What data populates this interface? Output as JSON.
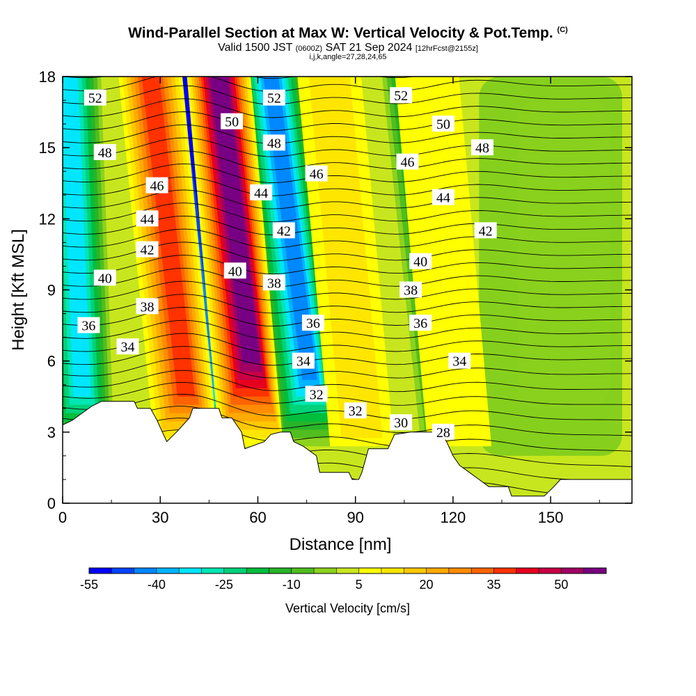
{
  "header": {
    "title": "Wind-Parallel Section at Max W: Vertical Velocity & Pot.Temp.",
    "copyright": "(C)",
    "valid_prefix": "Valid 1500 JST",
    "valid_utc": "(0600Z)",
    "valid_date": "SAT 21 Sep 2024",
    "forecast": "[12hrFcst@2155z]",
    "params": "i,j,k,angle=27,28,24,65"
  },
  "chart_data": {
    "type": "heatmap",
    "title": "Wind-Parallel Section at Max W: Vertical Velocity & Pot.Temp.",
    "xlabel": "Distance [nm]",
    "ylabel": "Height [Kft MSL]",
    "xlim": [
      0,
      175
    ],
    "ylim": [
      0,
      18
    ],
    "x_ticks": [
      0,
      30,
      60,
      90,
      120,
      150
    ],
    "y_ticks": [
      0,
      3,
      6,
      9,
      12,
      15,
      18
    ],
    "colorbar": {
      "label": "Vertical Velocity [cm/s]",
      "tick_labels": [
        -55,
        -40,
        -25,
        -10,
        5,
        20,
        35,
        50
      ],
      "levels": [
        -55,
        -50,
        -45,
        -40,
        -35,
        -30,
        -25,
        -20,
        -15,
        -10,
        -5,
        0,
        5,
        10,
        15,
        20,
        25,
        30,
        35,
        40,
        45,
        50,
        55,
        60
      ],
      "colors": [
        "#0000ff",
        "#0044ff",
        "#0088ff",
        "#00b4ff",
        "#00e6ff",
        "#00e6b4",
        "#00d27a",
        "#00be3c",
        "#28b428",
        "#50be1e",
        "#8cd21e",
        "#c8e61e",
        "#ffff00",
        "#ffe600",
        "#ffc800",
        "#ffaa00",
        "#ff8c00",
        "#ff6400",
        "#ff3200",
        "#e6001e",
        "#c80046",
        "#a00064",
        "#780082"
      ]
    },
    "updrafts": [
      {
        "x_bottom": 38,
        "x_top": 27,
        "peak_cm_s": 35
      },
      {
        "x_bottom": 58,
        "x_top": 48,
        "peak_cm_s": 60
      },
      {
        "x_bottom": 92,
        "x_top": 82,
        "peak_cm_s": 10
      },
      {
        "x_bottom": 122,
        "x_top": 112,
        "peak_cm_s": 8
      }
    ],
    "downdrafts": [
      {
        "x_bottom": 6,
        "x_top": 2,
        "peak_cm_s": -35
      },
      {
        "x_bottom": 50,
        "x_top": 38,
        "peak_cm_s": -55
      },
      {
        "x_bottom": 76,
        "x_top": 64,
        "peak_cm_s": -45
      },
      {
        "x_bottom": 120,
        "x_top": 108,
        "peak_cm_s": -30
      }
    ],
    "theta_labels": [
      {
        "value": "52",
        "x": 10,
        "y": 17.1
      },
      {
        "value": "52",
        "x": 65,
        "y": 17.1
      },
      {
        "value": "52",
        "x": 104,
        "y": 17.2
      },
      {
        "value": "50",
        "x": 52,
        "y": 16.1
      },
      {
        "value": "50",
        "x": 117,
        "y": 16.0
      },
      {
        "value": "48",
        "x": 13,
        "y": 14.8
      },
      {
        "value": "48",
        "x": 65,
        "y": 15.2
      },
      {
        "value": "48",
        "x": 129,
        "y": 15.0
      },
      {
        "value": "46",
        "x": 29,
        "y": 13.4
      },
      {
        "value": "46",
        "x": 78,
        "y": 13.9
      },
      {
        "value": "46",
        "x": 106,
        "y": 14.4
      },
      {
        "value": "44",
        "x": 26,
        "y": 12.0
      },
      {
        "value": "44",
        "x": 61,
        "y": 13.1
      },
      {
        "value": "44",
        "x": 117,
        "y": 12.9
      },
      {
        "value": "42",
        "x": 26,
        "y": 10.7
      },
      {
        "value": "42",
        "x": 68,
        "y": 11.5
      },
      {
        "value": "42",
        "x": 130,
        "y": 11.5
      },
      {
        "value": "40",
        "x": 13,
        "y": 9.5
      },
      {
        "value": "40",
        "x": 53,
        "y": 9.8
      },
      {
        "value": "40",
        "x": 110,
        "y": 10.2
      },
      {
        "value": "38",
        "x": 26,
        "y": 8.3
      },
      {
        "value": "38",
        "x": 65,
        "y": 9.3
      },
      {
        "value": "38",
        "x": 107,
        "y": 9.0
      },
      {
        "value": "36",
        "x": 8,
        "y": 7.5
      },
      {
        "value": "36",
        "x": 77,
        "y": 7.6
      },
      {
        "value": "36",
        "x": 110,
        "y": 7.6
      },
      {
        "value": "34",
        "x": 20,
        "y": 6.6
      },
      {
        "value": "34",
        "x": 74,
        "y": 6.0
      },
      {
        "value": "34",
        "x": 122,
        "y": 6.0
      },
      {
        "value": "32",
        "x": 78,
        "y": 4.6
      },
      {
        "value": "32",
        "x": 90,
        "y": 3.9
      },
      {
        "value": "30",
        "x": 104,
        "y": 3.4
      },
      {
        "value": "28",
        "x": 117,
        "y": 3.0
      }
    ],
    "terrain_kft": [
      [
        0,
        3.3
      ],
      [
        3,
        3.5
      ],
      [
        6,
        3.8
      ],
      [
        9,
        4.1
      ],
      [
        12,
        4.3
      ],
      [
        22,
        4.3
      ],
      [
        23,
        4.0
      ],
      [
        27,
        4.0
      ],
      [
        29,
        3.5
      ],
      [
        30,
        3.2
      ],
      [
        32,
        2.6
      ],
      [
        35,
        3.0
      ],
      [
        39,
        3.6
      ],
      [
        40,
        4.0
      ],
      [
        45,
        4.0
      ],
      [
        48,
        4.0
      ],
      [
        49,
        3.6
      ],
      [
        52,
        3.6
      ],
      [
        54,
        3.2
      ],
      [
        55,
        3.0
      ],
      [
        56,
        2.3
      ],
      [
        62,
        2.6
      ],
      [
        64,
        2.9
      ],
      [
        67,
        3.0
      ],
      [
        70,
        3.0
      ],
      [
        71,
        2.6
      ],
      [
        74,
        2.4
      ],
      [
        78,
        2.0
      ],
      [
        79,
        1.3
      ],
      [
        88,
        1.3
      ],
      [
        89,
        1.0
      ],
      [
        91,
        1.0
      ],
      [
        92,
        1.3
      ],
      [
        94,
        2.3
      ],
      [
        100,
        2.3
      ],
      [
        102,
        2.9
      ],
      [
        107,
        3.0
      ],
      [
        116,
        3.0
      ],
      [
        118,
        2.6
      ],
      [
        120,
        2.0
      ],
      [
        122,
        1.6
      ],
      [
        125,
        1.3
      ],
      [
        128,
        1.0
      ],
      [
        131,
        0.7
      ],
      [
        137,
        0.7
      ],
      [
        138,
        0.3
      ],
      [
        148,
        0.3
      ],
      [
        151,
        0.7
      ],
      [
        153,
        1.0
      ],
      [
        175,
        1.0
      ]
    ]
  }
}
